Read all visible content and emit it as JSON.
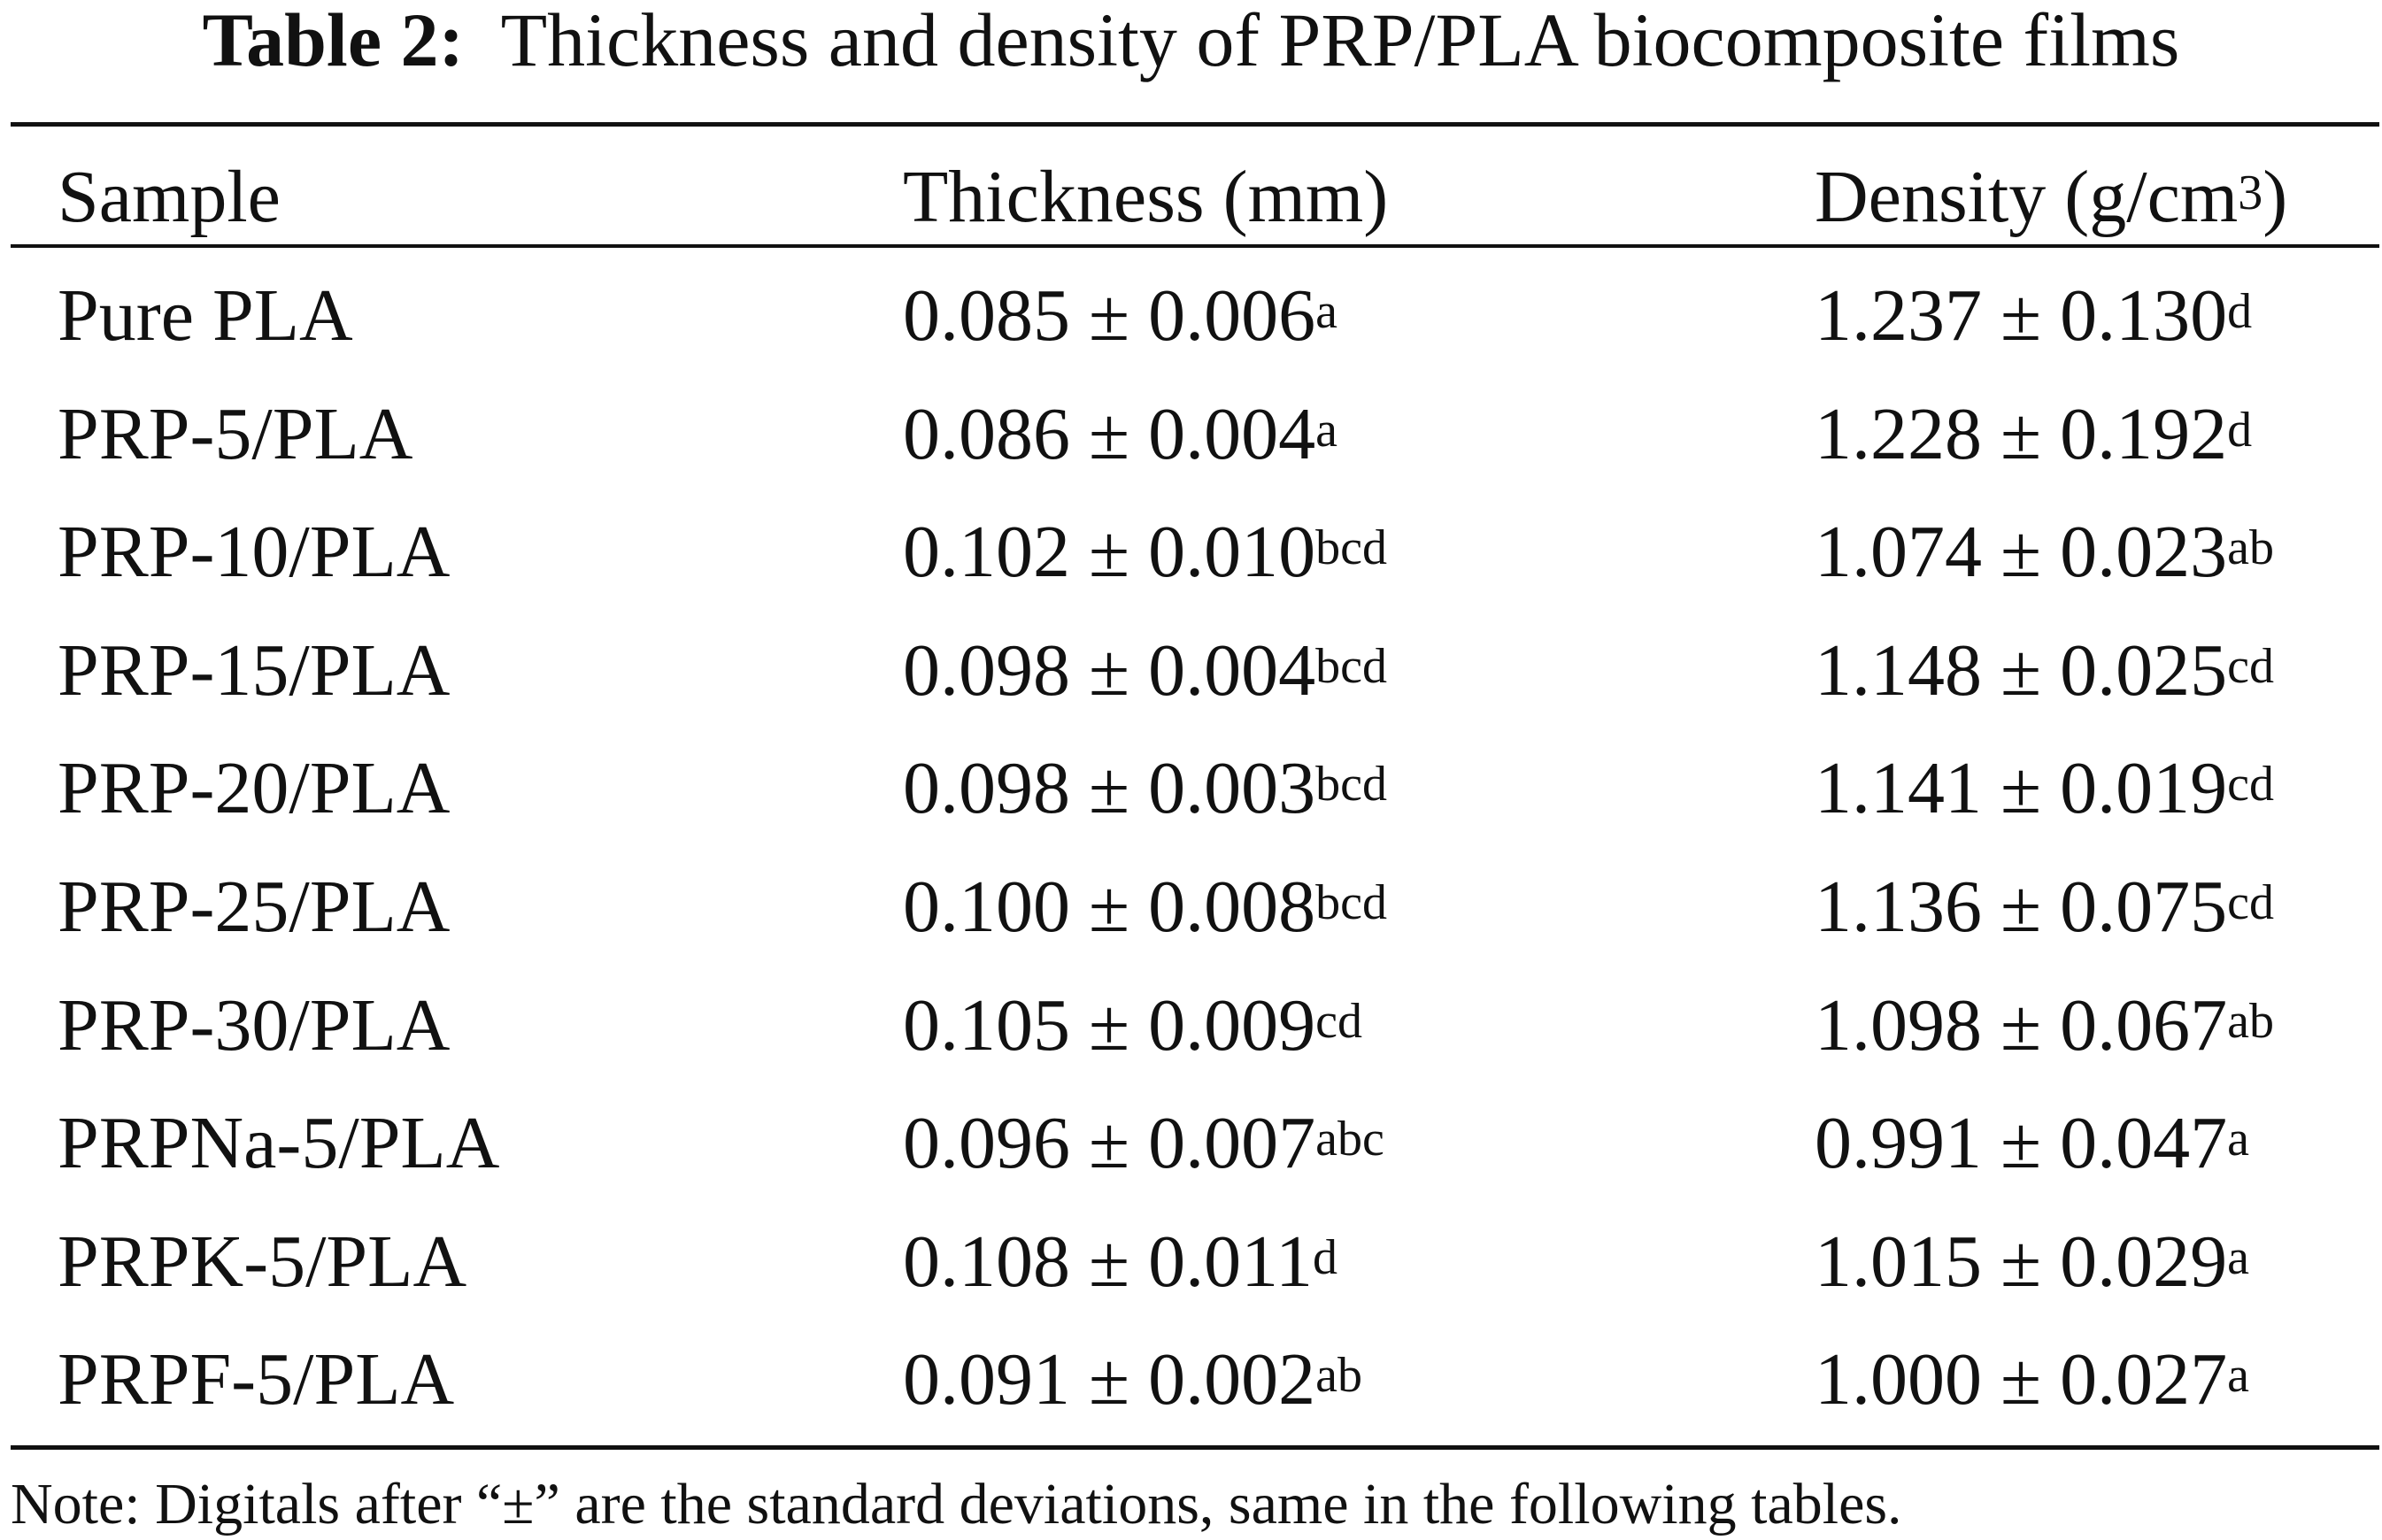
{
  "title": {
    "label": "Table 2:",
    "text": "Thickness and density of PRP/PLA biocomposite films"
  },
  "headers": {
    "sample": "Sample",
    "thickness": "Thickness (mm)",
    "density_prefix": "Density (g/cm",
    "density_sup": "3",
    "density_suffix": ")"
  },
  "rows": [
    {
      "sample": "Pure PLA",
      "thickness": "0.085 ± 0.006",
      "thickness_sup": "a",
      "density": "1.237 ± 0.130",
      "density_sup": "d"
    },
    {
      "sample": "PRP-5/PLA",
      "thickness": "0.086 ± 0.004",
      "thickness_sup": "a",
      "density": "1.228 ± 0.192",
      "density_sup": "d"
    },
    {
      "sample": "PRP-10/PLA",
      "thickness": "0.102 ± 0.010",
      "thickness_sup": "bcd",
      "density": "1.074 ± 0.023",
      "density_sup": "ab"
    },
    {
      "sample": "PRP-15/PLA",
      "thickness": "0.098 ± 0.004",
      "thickness_sup": "bcd",
      "density": "1.148 ± 0.025",
      "density_sup": "cd"
    },
    {
      "sample": "PRP-20/PLA",
      "thickness": "0.098 ± 0.003",
      "thickness_sup": "bcd",
      "density": "1.141 ± 0.019",
      "density_sup": "cd"
    },
    {
      "sample": "PRP-25/PLA",
      "thickness": "0.100 ± 0.008",
      "thickness_sup": "bcd",
      "density": "1.136 ± 0.075",
      "density_sup": "cd"
    },
    {
      "sample": "PRP-30/PLA",
      "thickness": "0.105 ± 0.009",
      "thickness_sup": "cd",
      "density": "1.098 ± 0.067",
      "density_sup": "ab"
    },
    {
      "sample": "PRPNa-5/PLA",
      "thickness": "0.096 ± 0.007",
      "thickness_sup": "abc",
      "density": "0.991 ± 0.047",
      "density_sup": "a"
    },
    {
      "sample": "PRPK-5/PLA",
      "thickness": "0.108 ± 0.011",
      "thickness_sup": "d",
      "density": "1.015 ± 0.029",
      "density_sup": "a"
    },
    {
      "sample": "PRPF-5/PLA",
      "thickness": "0.091 ± 0.002",
      "thickness_sup": "ab",
      "density": "1.000 ± 0.027",
      "density_sup": "a"
    }
  ],
  "note": "Note: Digitals after “±” are the standard deviations, same in the following tables."
}
